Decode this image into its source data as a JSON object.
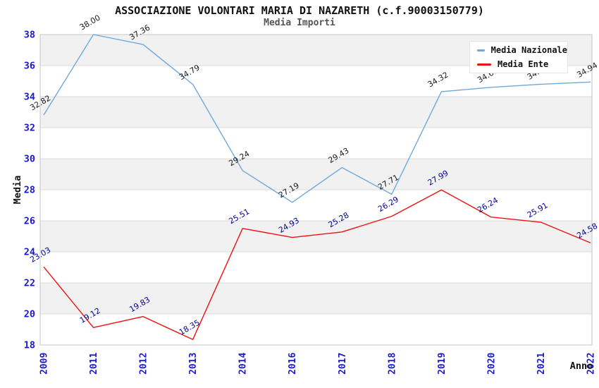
{
  "title": "ASSOCIAZIONE VOLONTARI MARIA DI NAZARETH (c.f.90003150779)",
  "subtitle": "Media Importi",
  "colors": {
    "band_gray": "#f1f1f1",
    "gridline": "#dcdcdc",
    "plot_border": "#c6c6c6",
    "tick_label_blue": "#1a1acc",
    "axis_title_black": "#111111",
    "nazionale_line": "#6fa8dc",
    "ente_line": "#ee1111",
    "nazionale_point_label": "#1a1a1a",
    "ente_point_label": "#000099"
  },
  "chart_data": {
    "type": "line",
    "title": "ASSOCIAZIONE VOLONTARI MARIA DI NAZARETH (c.f.90003150779)",
    "subtitle": "Media Importi",
    "xlabel": "Anno",
    "ylabel": "Media",
    "categories": [
      "2009",
      "2011",
      "2012",
      "2013",
      "2014",
      "2016",
      "2017",
      "2018",
      "2019",
      "2020",
      "2021",
      "2022"
    ],
    "series": [
      {
        "name": "Media Nazionale",
        "color": "#6fa8dc",
        "label_color": "#1a1a1a",
        "values": [
          32.82,
          38.0,
          37.36,
          34.79,
          29.24,
          27.19,
          29.43,
          27.71,
          34.32,
          34.6,
          34.8,
          34.94
        ],
        "labels": [
          "32.82",
          "38.00",
          "37.36",
          "34.79",
          "29.24",
          "27.19",
          "29.43",
          "27.71",
          "34.32",
          "34.60",
          "34.80",
          "34.94"
        ]
      },
      {
        "name": "Media Ente",
        "color": "#ee1111",
        "label_color": "#000099",
        "values": [
          23.03,
          19.12,
          19.83,
          18.35,
          25.51,
          24.93,
          25.28,
          26.29,
          27.99,
          26.24,
          25.91,
          24.58
        ],
        "labels": [
          "23.03",
          "19.12",
          "19.83",
          "18.35",
          "25.51",
          "24.93",
          "25.28",
          "26.29",
          "27.99",
          "26.24",
          "25.91",
          "24.58"
        ]
      }
    ],
    "ylim": [
      18,
      38
    ],
    "y_ticks": [
      18,
      20,
      22,
      24,
      26,
      28,
      30,
      32,
      34,
      36,
      38
    ],
    "grid": "horizontal-bands-alternating",
    "legend_position": "top-right",
    "notes": "2020 and 2021 Media Nazionale labels partially hidden behind legend box"
  }
}
